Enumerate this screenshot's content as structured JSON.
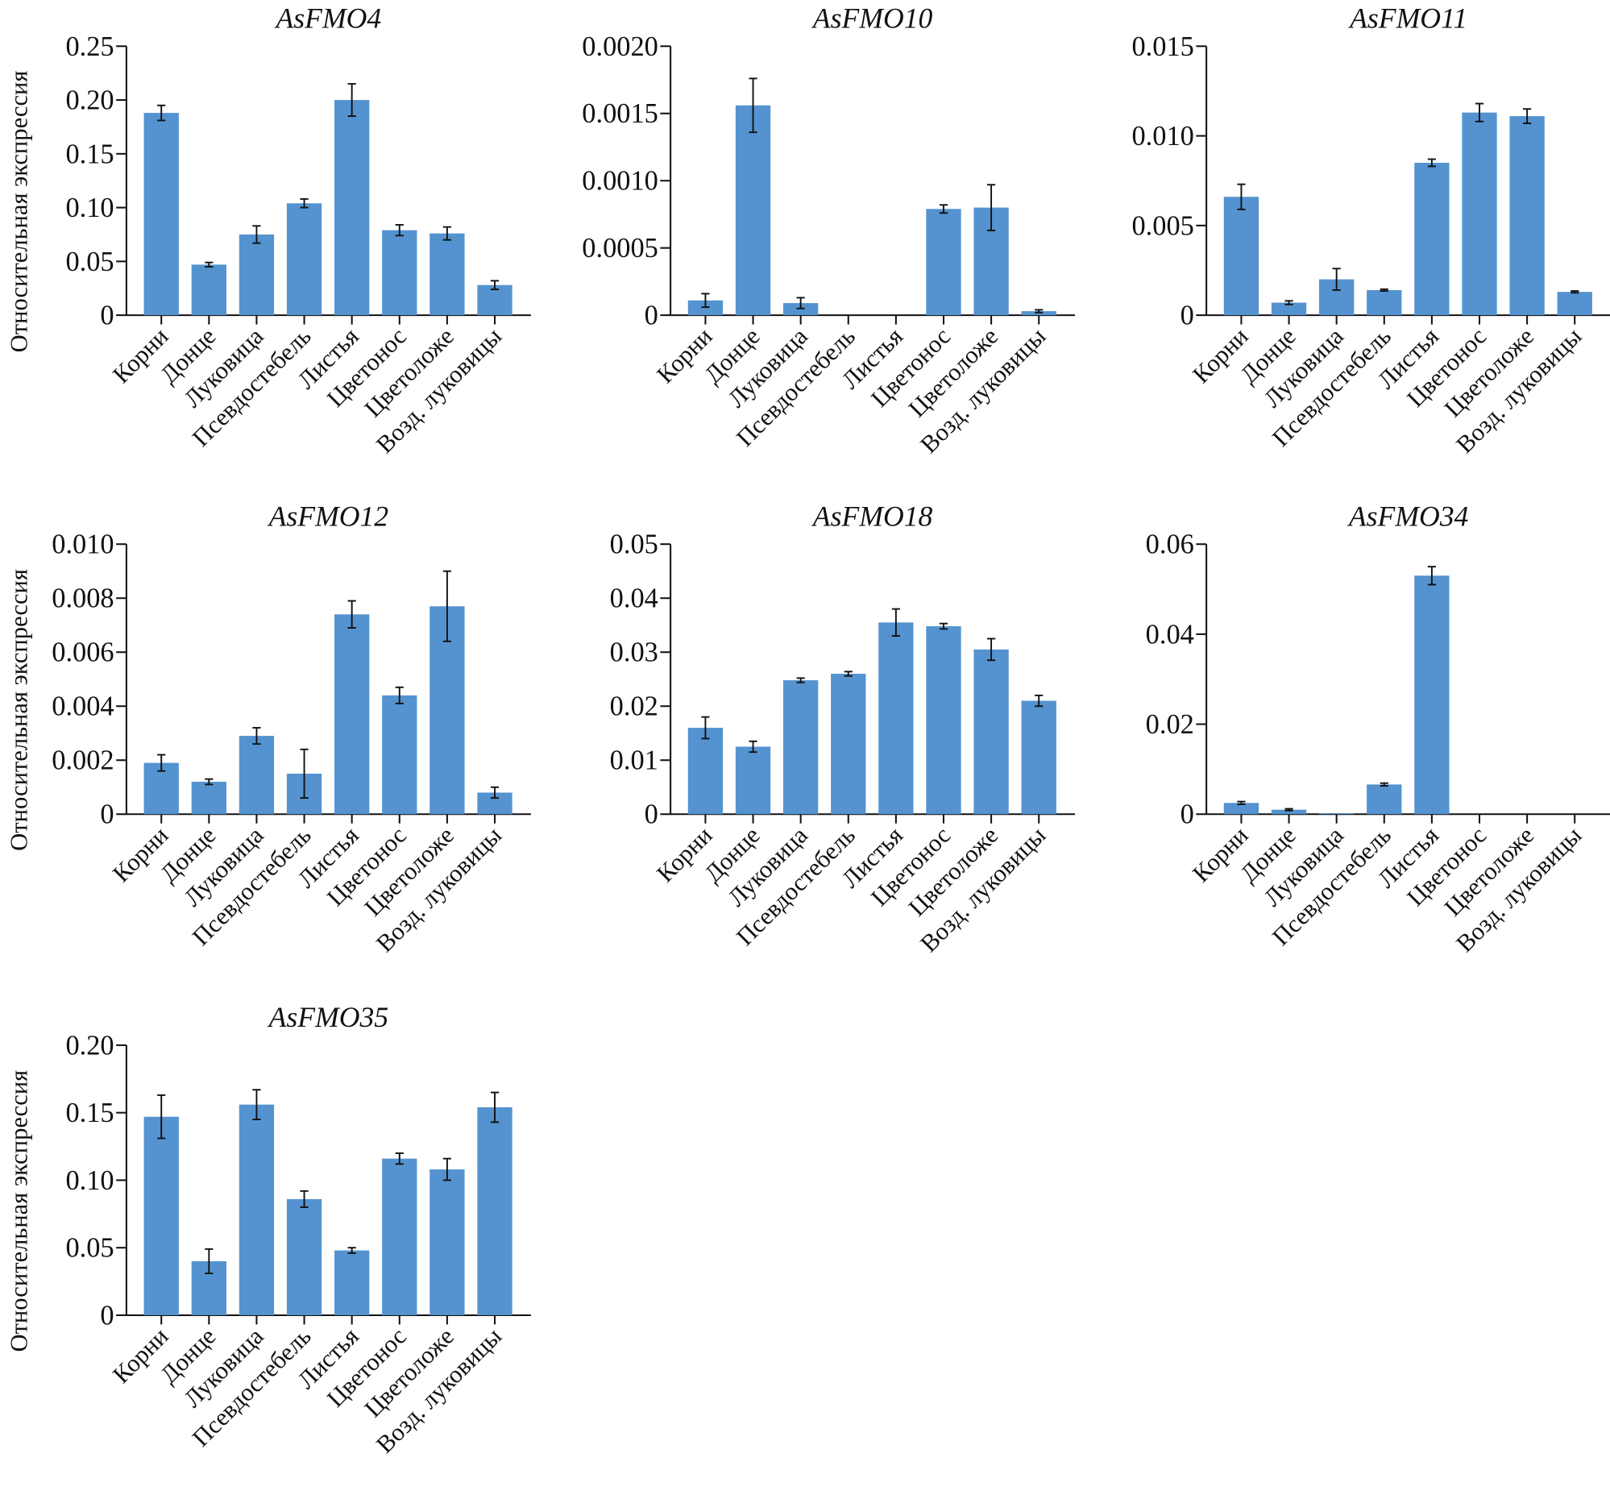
{
  "chart_data": [
    {
      "type": "bar",
      "title": "AsFMO4",
      "ylabel": "Относительная экспрессия",
      "ylim": [
        0,
        0.25
      ],
      "yticks": [
        "0",
        "0.05",
        "0.10",
        "0.15",
        "0.20",
        "0.25"
      ],
      "categories": [
        "Корни",
        "Донце",
        "Луковица",
        "Псевдостебель",
        "Листья",
        "Цветонос",
        "Цветоложе",
        "Возд. луковицы"
      ],
      "values": [
        0.188,
        0.047,
        0.075,
        0.104,
        0.2,
        0.079,
        0.076,
        0.028
      ],
      "errors": [
        0.007,
        0.002,
        0.008,
        0.004,
        0.015,
        0.005,
        0.006,
        0.004
      ]
    },
    {
      "type": "bar",
      "title": "AsFMO10",
      "ylabel": "",
      "ylim": [
        0,
        0.002
      ],
      "yticks": [
        "0",
        "0.0005",
        "0.0010",
        "0.0015",
        "0.0020"
      ],
      "categories": [
        "Корни",
        "Донце",
        "Луковица",
        "Псевдостебель",
        "Листья",
        "Цветонос",
        "Цветоложе",
        "Возд. луковицы"
      ],
      "values": [
        0.00011,
        0.00156,
        9e-05,
        0,
        0,
        0.00079,
        0.0008,
        3e-05
      ],
      "errors": [
        5e-05,
        0.0002,
        4e-05,
        0,
        0,
        3e-05,
        0.00017,
        1e-05
      ]
    },
    {
      "type": "bar",
      "title": "AsFMO11",
      "ylabel": "",
      "ylim": [
        0,
        0.015
      ],
      "yticks": [
        "0",
        "0.005",
        "0.010",
        "0.015"
      ],
      "categories": [
        "Корни",
        "Донце",
        "Луковица",
        "Псевдостебель",
        "Листья",
        "Цветонос",
        "Цветоложе",
        "Возд. луковицы"
      ],
      "values": [
        0.0066,
        0.0007,
        0.002,
        0.0014,
        0.0085,
        0.0113,
        0.0111,
        0.0013
      ],
      "errors": [
        0.0007,
        0.0001,
        0.0006,
        5e-05,
        0.0002,
        0.0005,
        0.0004,
        5e-05
      ]
    },
    {
      "type": "bar",
      "title": "AsFMO12",
      "ylabel": "Относительная экспрессия",
      "ylim": [
        0,
        0.01
      ],
      "yticks": [
        "0",
        "0.002",
        "0.004",
        "0.006",
        "0.008",
        "0.010"
      ],
      "categories": [
        "Корни",
        "Донце",
        "Луковица",
        "Псевдостебель",
        "Листья",
        "Цветонос",
        "Цветоложе",
        "Возд. луковицы"
      ],
      "values": [
        0.0019,
        0.0012,
        0.0029,
        0.0015,
        0.0074,
        0.0044,
        0.0077,
        0.0008
      ],
      "errors": [
        0.0003,
        0.0001,
        0.0003,
        0.0009,
        0.0005,
        0.0003,
        0.0013,
        0.0002
      ]
    },
    {
      "type": "bar",
      "title": "AsFMO18",
      "ylabel": "",
      "ylim": [
        0,
        0.05
      ],
      "yticks": [
        "0",
        "0.01",
        "0.02",
        "0.03",
        "0.04",
        "0.05"
      ],
      "categories": [
        "Корни",
        "Донце",
        "Луковица",
        "Псевдостебель",
        "Листья",
        "Цветонос",
        "Цветоложе",
        "Возд. луковицы"
      ],
      "values": [
        0.016,
        0.0125,
        0.0248,
        0.026,
        0.0355,
        0.0348,
        0.0305,
        0.021
      ],
      "errors": [
        0.002,
        0.001,
        0.0004,
        0.0004,
        0.0025,
        0.0005,
        0.002,
        0.001
      ]
    },
    {
      "type": "bar",
      "title": "AsFMO34",
      "ylabel": "",
      "ylim": [
        0,
        0.06
      ],
      "yticks": [
        "0",
        "0.02",
        "0.04",
        "0.06"
      ],
      "categories": [
        "Корни",
        "Донце",
        "Луковица",
        "Псевдостебель",
        "Листья",
        "Цветонос",
        "Цветоложе",
        "Возд. луковицы"
      ],
      "values": [
        0.0025,
        0.001,
        0.0002,
        0.0066,
        0.053,
        0,
        0,
        0
      ],
      "errors": [
        0.0003,
        0.0002,
        0,
        0.0003,
        0.002,
        0,
        0,
        0
      ]
    },
    {
      "type": "bar",
      "title": "AsFMO35",
      "ylabel": "Относительная экспрессия",
      "ylim": [
        0,
        0.2
      ],
      "yticks": [
        "0",
        "0.05",
        "0.10",
        "0.15",
        "0.20"
      ],
      "categories": [
        "Корни",
        "Донце",
        "Луковица",
        "Псевдостебель",
        "Листья",
        "Цветонос",
        "Цветоложе",
        "Возд. луковицы"
      ],
      "values": [
        0.147,
        0.04,
        0.156,
        0.086,
        0.048,
        0.116,
        0.108,
        0.154
      ],
      "errors": [
        0.016,
        0.009,
        0.011,
        0.006,
        0.002,
        0.004,
        0.008,
        0.011
      ]
    }
  ],
  "colors": {
    "bar": "#5493cf",
    "axis": "#111111"
  }
}
